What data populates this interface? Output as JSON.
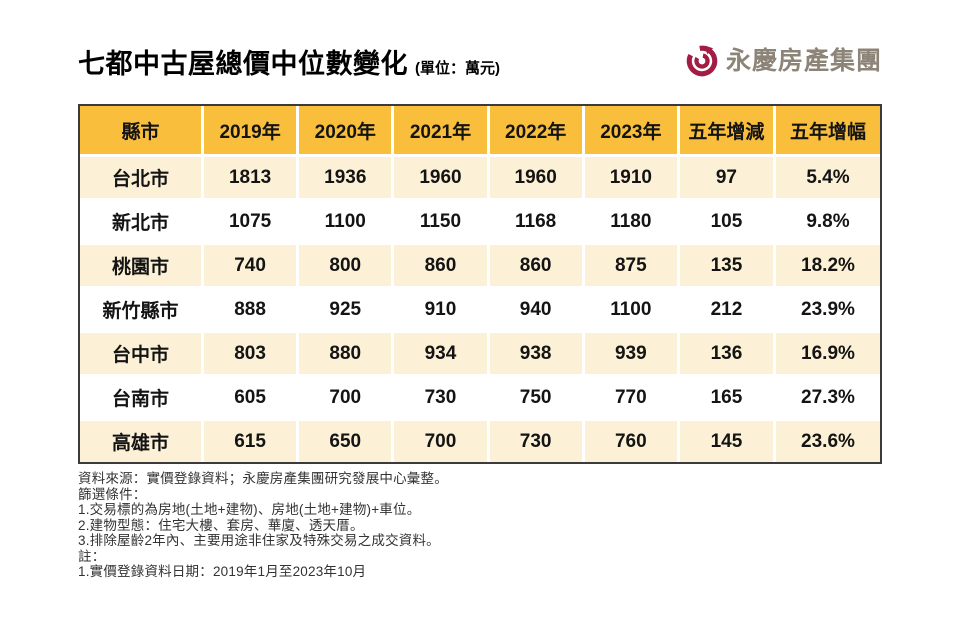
{
  "title": {
    "main": "七都中古屋總價中位數變化",
    "unit": "(單位：萬元)"
  },
  "logo": {
    "text": "永慶房產集團",
    "icon": "yungching-ring-icon",
    "icon_color": "#a21c44",
    "text_color": "#8d8478"
  },
  "colors": {
    "header_bg": "#f9be3c",
    "row_alt_bg": "#fcf1d6",
    "row_bg": "#ffffff",
    "table_border": "#3b3b3b",
    "note_text": "#333333"
  },
  "table": {
    "headers": [
      "縣市",
      "2019年",
      "2020年",
      "2021年",
      "2022年",
      "2023年",
      "五年增減",
      "五年增幅"
    ],
    "rows": [
      [
        "台北市",
        "1813",
        "1936",
        "1960",
        "1960",
        "1910",
        "97",
        "5.4%"
      ],
      [
        "新北市",
        "1075",
        "1100",
        "1150",
        "1168",
        "1180",
        "105",
        "9.8%"
      ],
      [
        "桃園市",
        "740",
        "800",
        "860",
        "860",
        "875",
        "135",
        "18.2%"
      ],
      [
        "新竹縣市",
        "888",
        "925",
        "910",
        "940",
        "1100",
        "212",
        "23.9%"
      ],
      [
        "台中市",
        "803",
        "880",
        "934",
        "938",
        "939",
        "136",
        "16.9%"
      ],
      [
        "台南市",
        "605",
        "700",
        "730",
        "750",
        "770",
        "165",
        "27.3%"
      ],
      [
        "高雄市",
        "615",
        "650",
        "700",
        "730",
        "760",
        "145",
        "23.6%"
      ]
    ]
  },
  "notes": {
    "lines": [
      "資料來源：實價登錄資料；永慶房產集團研究發展中心彙整。",
      "篩選條件：",
      "1.交易標的為房地(土地+建物)、房地(土地+建物)+車位。",
      "2.建物型態：住宅大樓、套房、華廈、透天厝。",
      "3.排除屋齡2年內、主要用途非住家及特殊交易之成交資料。",
      "註：",
      "1.實價登錄資料日期：2019年1月至2023年10月"
    ]
  },
  "chart_data": {
    "type": "table",
    "title": "七都中古屋總價中位數變化",
    "unit": "萬元",
    "categories": [
      "2019年",
      "2020年",
      "2021年",
      "2022年",
      "2023年"
    ],
    "series": [
      {
        "name": "台北市",
        "values": [
          1813,
          1936,
          1960,
          1960,
          1910
        ],
        "five_year_change": 97,
        "five_year_growth_pct": 5.4
      },
      {
        "name": "新北市",
        "values": [
          1075,
          1100,
          1150,
          1168,
          1180
        ],
        "five_year_change": 105,
        "five_year_growth_pct": 9.8
      },
      {
        "name": "桃園市",
        "values": [
          740,
          800,
          860,
          860,
          875
        ],
        "five_year_change": 135,
        "five_year_growth_pct": 18.2
      },
      {
        "name": "新竹縣市",
        "values": [
          888,
          925,
          910,
          940,
          1100
        ],
        "five_year_change": 212,
        "five_year_growth_pct": 23.9
      },
      {
        "name": "台中市",
        "values": [
          803,
          880,
          934,
          938,
          939
        ],
        "five_year_change": 136,
        "five_year_growth_pct": 16.9
      },
      {
        "name": "台南市",
        "values": [
          605,
          700,
          730,
          750,
          770
        ],
        "five_year_change": 165,
        "five_year_growth_pct": 27.3
      },
      {
        "name": "高雄市",
        "values": [
          615,
          650,
          700,
          730,
          760
        ],
        "five_year_change": 145,
        "five_year_growth_pct": 23.6
      }
    ]
  }
}
